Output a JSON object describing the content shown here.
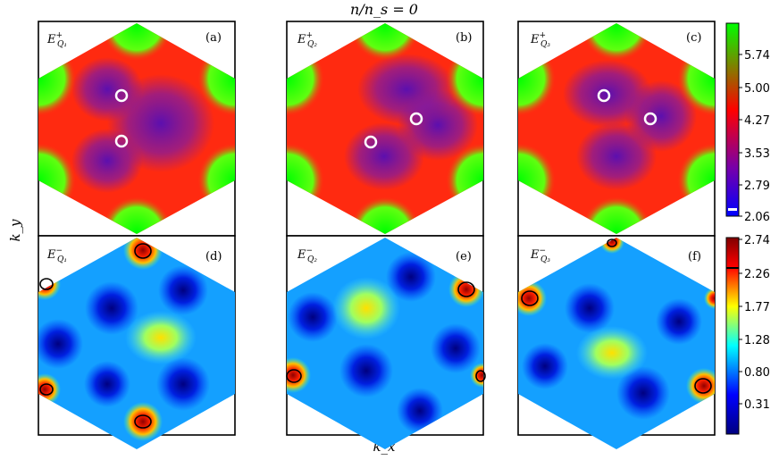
{
  "figure": {
    "title": "n/n_s = 0",
    "x_axis_label": "k_x",
    "y_axis_label": "k_y"
  },
  "chart_data": [
    {
      "type": "heatmap",
      "panel": "(a)",
      "quantity": "E+ Q1",
      "row": "top",
      "colormap": "green-red-purple-blue",
      "markers": "2 white circles"
    },
    {
      "type": "heatmap",
      "panel": "(b)",
      "quantity": "E+ Q2",
      "row": "top",
      "colormap": "green-red-purple-blue",
      "markers": "2 white circles"
    },
    {
      "type": "heatmap",
      "panel": "(c)",
      "quantity": "E+ Q3",
      "row": "top",
      "colormap": "green-red-purple-blue",
      "markers": "2 white circles"
    },
    {
      "type": "heatmap",
      "panel": "(d)",
      "quantity": "E- Q1",
      "row": "bottom",
      "colormap": "jet",
      "contour": "black contour near maximum"
    },
    {
      "type": "heatmap",
      "panel": "(e)",
      "quantity": "E- Q2",
      "row": "bottom",
      "colormap": "jet",
      "contour": "black contour near maximum"
    },
    {
      "type": "heatmap",
      "panel": "(f)",
      "quantity": "E- Q3",
      "row": "bottom",
      "colormap": "jet",
      "contour": "black contour near maximum"
    }
  ],
  "colorbars": {
    "top": {
      "ticks": [
        "5.74",
        "5.00",
        "4.27",
        "3.53",
        "2.79",
        "2.06"
      ],
      "colors": [
        "#00ff00",
        "#ff0000",
        "#7700aa",
        "#0000ff"
      ],
      "marker": "white tick near bottom"
    },
    "bottom": {
      "ticks": [
        "2.74",
        "2.26",
        "1.77",
        "1.28",
        "0.80",
        "0.31"
      ],
      "colors": [
        "#800000",
        "#ff0000",
        "#ffff00",
        "#00ffff",
        "#0000ff",
        "#000080"
      ],
      "marker": "black line near 2.26"
    }
  },
  "colors": {
    "top_edge": "#00ff00",
    "top_mid": "#ff2a10",
    "top_center": "#7a18a8",
    "marker_circle": "#ffffff",
    "bottom_contour": "#000000"
  }
}
